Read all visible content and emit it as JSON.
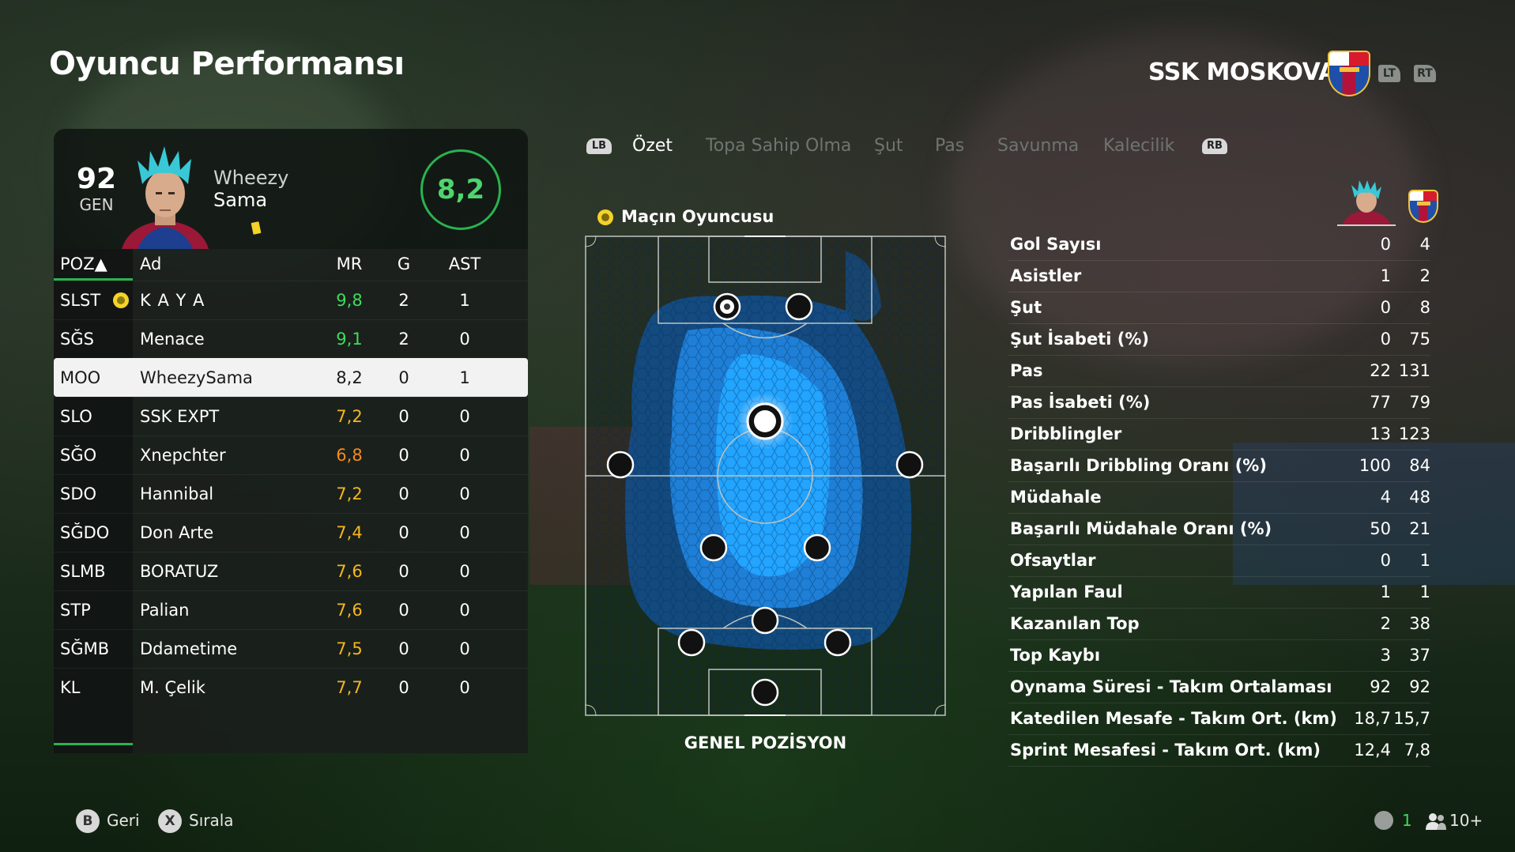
{
  "header": {
    "title": "Oyuncu Performansı",
    "team_name": "SSK MOSKOVA",
    "lt": "LT",
    "rt": "RT"
  },
  "player": {
    "overall": "92",
    "overall_label": "GEN",
    "first_name": "Wheezy",
    "last_name": "Sama",
    "match_rating": "8,2"
  },
  "table": {
    "headers": {
      "pos": "POZ▲",
      "name": "Ad",
      "mr": "MR",
      "g": "G",
      "ast": "AST"
    },
    "rows": [
      {
        "pos": "SLST",
        "name": "K A Y A",
        "mr": "9,8",
        "g": "2",
        "ast": "1",
        "mr_color": "#3ddc5a",
        "potm": true
      },
      {
        "pos": "SĞS",
        "name": "Menace",
        "mr": "9,1",
        "g": "2",
        "ast": "0",
        "mr_color": "#3ddc5a"
      },
      {
        "pos": "MOO",
        "name": "WheezySama",
        "mr": "8,2",
        "g": "0",
        "ast": "1",
        "mr_color": "#1a1a1a",
        "selected": true
      },
      {
        "pos": "SLO",
        "name": "SSK EXPT",
        "mr": "7,2",
        "g": "0",
        "ast": "0",
        "mr_color": "#f5b71c"
      },
      {
        "pos": "SĞO",
        "name": "Xnepchter",
        "mr": "6,8",
        "g": "0",
        "ast": "0",
        "mr_color": "#f58a1c"
      },
      {
        "pos": "SDO",
        "name": "Hannibal",
        "mr": "7,2",
        "g": "0",
        "ast": "0",
        "mr_color": "#f5b71c"
      },
      {
        "pos": "SĞDO",
        "name": "Don Arte",
        "mr": "7,4",
        "g": "0",
        "ast": "0",
        "mr_color": "#f5b71c"
      },
      {
        "pos": "SLMB",
        "name": "BORATUZ",
        "mr": "7,6",
        "g": "0",
        "ast": "0",
        "mr_color": "#f5b71c"
      },
      {
        "pos": "STP",
        "name": "Palian",
        "mr": "7,6",
        "g": "0",
        "ast": "0",
        "mr_color": "#f5b71c"
      },
      {
        "pos": "SĞMB",
        "name": "Ddametime",
        "mr": "7,5",
        "g": "0",
        "ast": "0",
        "mr_color": "#f5b71c"
      },
      {
        "pos": "KL",
        "name": "M. Çelik",
        "mr": "7,7",
        "g": "0",
        "ast": "0",
        "mr_color": "#f5b71c"
      }
    ]
  },
  "tabs": {
    "lb": "LB",
    "rb": "RB",
    "items": [
      "Özet",
      "Topa Sahip Olma",
      "Şut",
      "Pas",
      "Savunma",
      "Kalecilik"
    ]
  },
  "pitch": {
    "potm_label": "Maçın Oyuncusu",
    "label": "GENEL POZİSYON"
  },
  "stats": [
    {
      "label": "Gol Sayısı",
      "player": "0",
      "team": "4"
    },
    {
      "label": "Asistler",
      "player": "1",
      "team": "2"
    },
    {
      "label": "Şut",
      "player": "0",
      "team": "8"
    },
    {
      "label": "Şut İsabeti (%)",
      "player": "0",
      "team": "75"
    },
    {
      "label": "Pas",
      "player": "22",
      "team": "131"
    },
    {
      "label": "Pas İsabeti (%)",
      "player": "77",
      "team": "79"
    },
    {
      "label": "Dribblingler",
      "player": "13",
      "team": "123"
    },
    {
      "label": "Başarılı Dribbling Oranı (%)",
      "player": "100",
      "team": "84"
    },
    {
      "label": "Müdahale",
      "player": "4",
      "team": "48"
    },
    {
      "label": "Başarılı Müdahale Oranı (%)",
      "player": "50",
      "team": "21"
    },
    {
      "label": "Ofsaytlar",
      "player": "0",
      "team": "1"
    },
    {
      "label": "Yapılan Faul",
      "player": "1",
      "team": "1"
    },
    {
      "label": "Kazanılan Top",
      "player": "2",
      "team": "38"
    },
    {
      "label": "Top Kaybı",
      "player": "3",
      "team": "37"
    },
    {
      "label": "Oynama Süresi - Takım Ortalaması",
      "player": "92",
      "team": "92"
    },
    {
      "label": "Katedilen Mesafe - Takım Ort. (km)",
      "player": "18,7",
      "team": "15,7"
    },
    {
      "label": "Sprint Mesafesi - Takım Ort. (km)",
      "player": "12,4",
      "team": "7,8"
    }
  ],
  "footer": {
    "back_btn": "B",
    "back_label": "Geri",
    "sort_btn": "X",
    "sort_label": "Sırala",
    "count": "1",
    "players": "10+"
  },
  "colors": {
    "accent_green": "#29b34f",
    "heatmap_blue": "#1ea0ff"
  }
}
